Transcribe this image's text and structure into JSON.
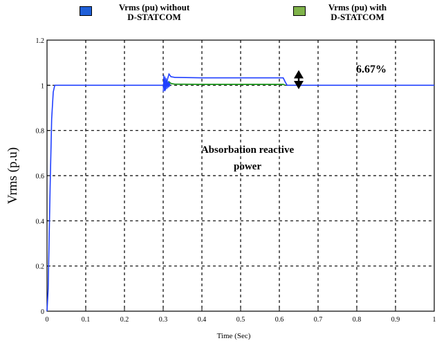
{
  "chart_data": {
    "type": "line",
    "xlabel": "Time (Sec)",
    "ylabel": "Vrms (p.u)",
    "xlim": [
      0,
      1
    ],
    "ylim": [
      0,
      1.2
    ],
    "x_ticks": [
      "0",
      "0.1",
      "0.2",
      "0.3",
      "0.4",
      "0.5",
      "0.6",
      "0.7",
      "0.8",
      "0.9",
      "1"
    ],
    "y_ticks": [
      "0",
      "0.2",
      "0.4",
      "0.6",
      "0.8",
      "1",
      "1.2"
    ],
    "grid": true,
    "legend_placement": "top",
    "series": [
      {
        "name": "Vrms (pu) without D-STATCOM",
        "color": "#1f3fff",
        "x": [
          0,
          0.003,
          0.008,
          0.012,
          0.016,
          0.02,
          0.3,
          0.305,
          0.31,
          0.315,
          0.32,
          0.33,
          0.4,
          0.5,
          0.6,
          0.61,
          0.615,
          0.62,
          1.0
        ],
        "y": [
          0,
          0.1,
          0.55,
          0.85,
          0.97,
          1.0,
          1.0,
          0.98,
          1.02,
          1.05,
          1.038,
          1.035,
          1.033,
          1.033,
          1.033,
          1.033,
          1.015,
          1.0,
          1.0
        ]
      },
      {
        "name": "Vrms (pu) with D-STATCOM",
        "color": "#2e9e2e",
        "x": [
          0.31,
          0.315,
          0.32,
          0.33,
          0.4,
          0.5,
          0.6,
          0.61,
          0.615
        ],
        "y": [
          1.0,
          1.015,
          1.008,
          1.005,
          1.004,
          1.004,
          1.004,
          1.004,
          1.0
        ]
      }
    ],
    "annotations": {
      "percent": "6.67%",
      "note_line1": "Absorbation reactive",
      "note_line2": "power"
    }
  },
  "legend": {
    "without": {
      "line1": "Vrms (pu) without",
      "line2": "D-STATCOM",
      "color": "#1f5fd8"
    },
    "with": {
      "line1": "Vrms (pu) with",
      "line2": "D-STATCOM",
      "color": "#7fb34a"
    }
  }
}
